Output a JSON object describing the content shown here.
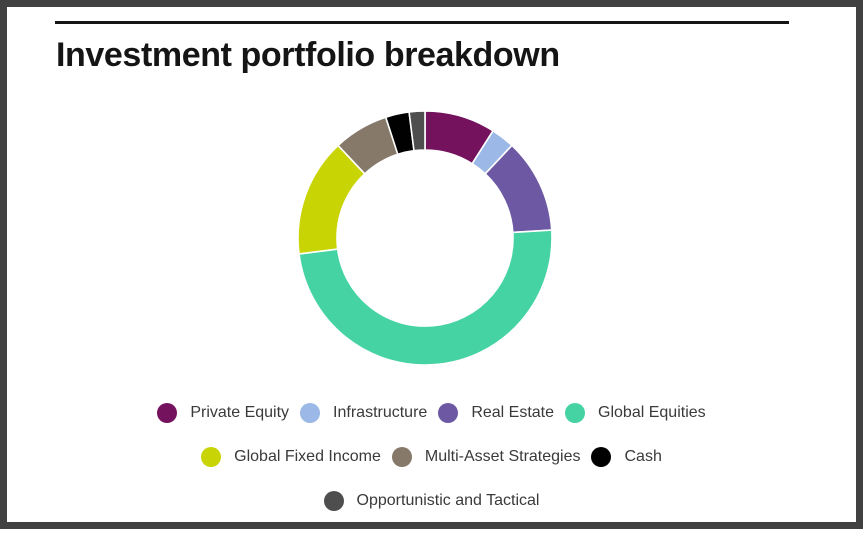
{
  "page": {
    "background": "#ffffff",
    "frame_color": "#414141",
    "rule_color": "#151515",
    "title_color": "#151515",
    "legend_text_color": "#3a3a3a"
  },
  "chart_data": {
    "type": "pie",
    "subtype": "donut",
    "title": "Investment portfolio breakdown",
    "categories": [
      "Private Equity",
      "Infrastructure",
      "Real Estate",
      "Global Equities",
      "Global Fixed Income",
      "Multi-Asset Strategies",
      "Cash",
      "Opportunistic and Tactical"
    ],
    "values": [
      9,
      3,
      12,
      49,
      15,
      7,
      3,
      2
    ],
    "unit": "percent_of_total_estimated_from_arc_angles",
    "colors": [
      "#74125E",
      "#9BB8E6",
      "#6D59A3",
      "#45D3A3",
      "#C9D405",
      "#867969",
      "#010101",
      "#4E4E4E"
    ],
    "slice_border_color": "#ffffff",
    "start_angle_deg": 0,
    "direction": "clockwise",
    "inner_radius_ratio": 0.69,
    "data_labels": "none",
    "legend_position": "bottom",
    "legend_rows": [
      4,
      3,
      1
    ]
  }
}
